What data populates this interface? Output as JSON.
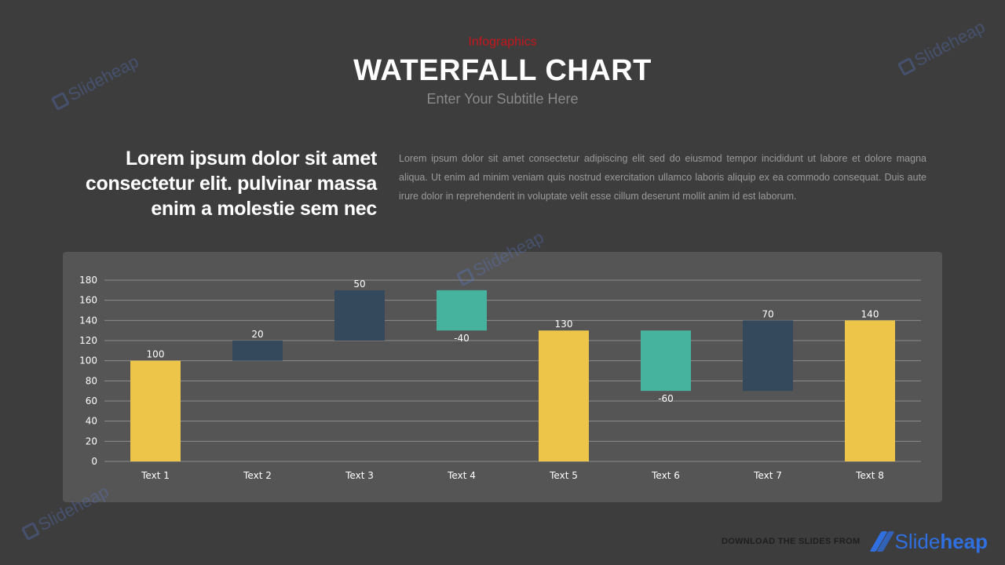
{
  "header": {
    "eyebrow": "Infographics",
    "title": "WATERFALL CHART",
    "subtitle": "Enter Your Subtitle Here"
  },
  "lead_text": "Lorem ipsum dolor sit amet consectetur elit. pulvinar massa enim a molestie sem nec",
  "body_text": "Lorem ipsum dolor sit amet consectetur adipiscing elit sed do eiusmod tempor incididunt ut labore et dolore magna aliqua. Ut enim ad minim veniam quis nostrud exercitation ullamco laboris aliquip ex ea commodo consequat. Duis aute irure dolor in reprehenderit in voluptate velit esse cillum deserunt mollit anim id est laborum.",
  "watermark_text": "Slideheap",
  "footer": {
    "download_text": "DOWNLOAD THE SLIDES FROM",
    "brand_part1": "Slide",
    "brand_part2": "heap"
  },
  "colors": {
    "total": "#edc548",
    "increase": "#344a5c",
    "decrease": "#45b39d",
    "accent": "#c4161c",
    "brand": "#2f6fe0"
  },
  "chart_data": {
    "type": "bar",
    "subtype": "waterfall",
    "categories": [
      "Text 1",
      "Text 2",
      "Text 3",
      "Text 4",
      "Text 5",
      "Text 6",
      "Text 7",
      "Text 8"
    ],
    "bars": [
      {
        "category": "Text 1",
        "kind": "total",
        "base": 0,
        "top": 100,
        "label": "100"
      },
      {
        "category": "Text 2",
        "kind": "increase",
        "base": 100,
        "top": 120,
        "label": "20"
      },
      {
        "category": "Text 3",
        "kind": "increase",
        "base": 120,
        "top": 170,
        "label": "50"
      },
      {
        "category": "Text 4",
        "kind": "decrease",
        "base": 130,
        "top": 170,
        "label": "-40"
      },
      {
        "category": "Text 5",
        "kind": "total",
        "base": 0,
        "top": 130,
        "label": "130"
      },
      {
        "category": "Text 6",
        "kind": "decrease",
        "base": 70,
        "top": 130,
        "label": "-60"
      },
      {
        "category": "Text 7",
        "kind": "increase",
        "base": 70,
        "top": 140,
        "label": "70"
      },
      {
        "category": "Text 8",
        "kind": "total",
        "base": 0,
        "top": 140,
        "label": "140"
      }
    ],
    "ylim": [
      0,
      180
    ],
    "yticks": [
      "0",
      "20",
      "40",
      "60",
      "80",
      "100",
      "120",
      "140",
      "160",
      "180"
    ],
    "grid": true,
    "legend": "none"
  }
}
